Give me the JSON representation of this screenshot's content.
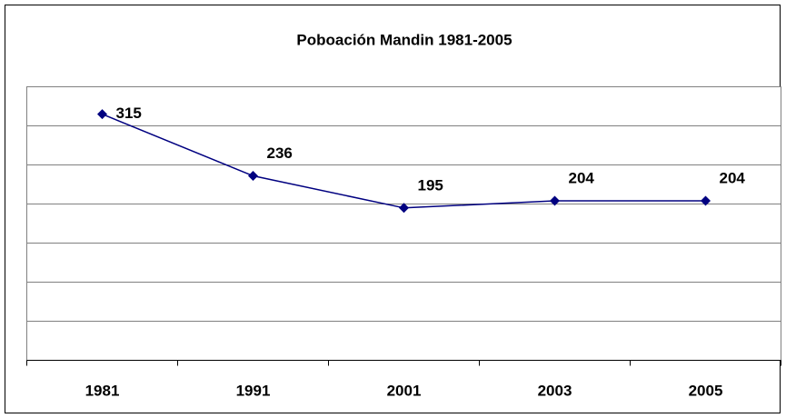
{
  "chart_data": {
    "type": "line",
    "title": "Poboación Mandin 1981-2005",
    "categories": [
      "1981",
      "1991",
      "2001",
      "2003",
      "2005"
    ],
    "series": [
      {
        "name": "Poboación",
        "color": "#000080",
        "values": [
          315,
          236,
          195,
          204,
          204
        ]
      }
    ],
    "ylim": [
      0,
      350
    ],
    "yticks": [
      0,
      50,
      100,
      150,
      200,
      250,
      300,
      350
    ],
    "grid": true
  }
}
